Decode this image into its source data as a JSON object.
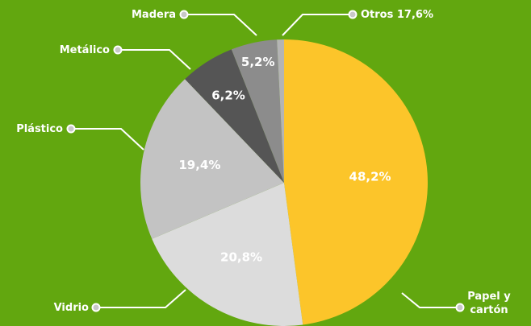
{
  "chart_data": {
    "type": "pie",
    "categories": [
      "Papel y cartón",
      "Vidrio",
      "Plástico",
      "Metálico",
      "Madera",
      "Otros 17,6%"
    ],
    "values": [
      48.2,
      20.8,
      19.4,
      6.2,
      5.2,
      0.8
    ],
    "value_labels": [
      "48,2%",
      "20,8%",
      "19,4%",
      "6,2%",
      "5,2%",
      null
    ],
    "colors": [
      "#fcc52a",
      "#dcdcdc",
      "#c3c3c3",
      "#555555",
      "#8c8c8c",
      "#b4b4b4"
    ]
  }
}
